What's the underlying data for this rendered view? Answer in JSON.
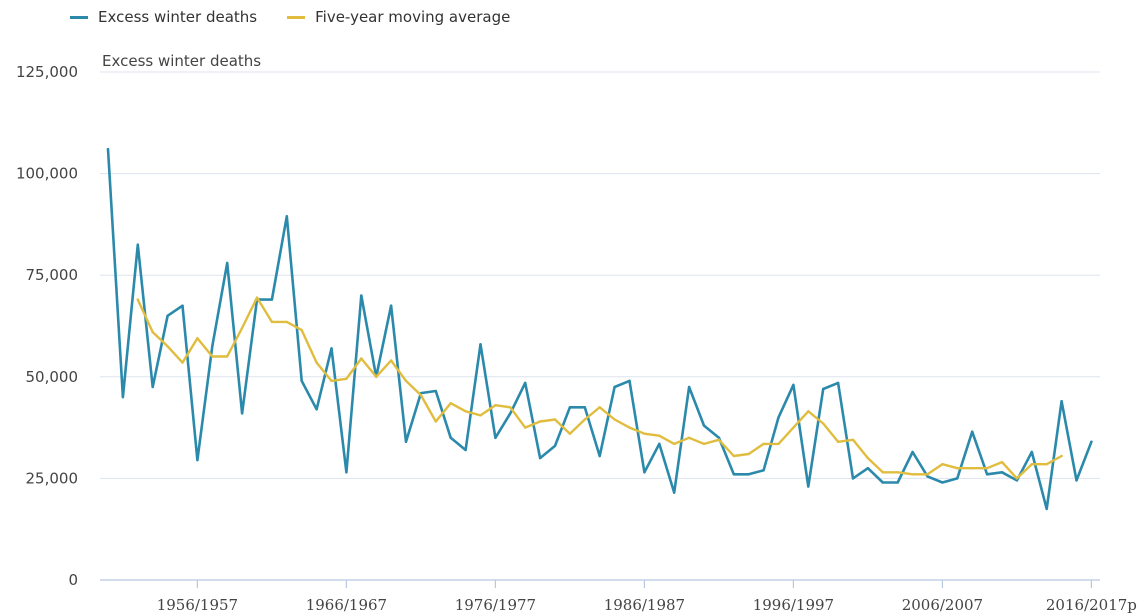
{
  "chart_data": {
    "type": "line",
    "legend": [
      {
        "name": "Excess winter deaths",
        "color": "#2b8aab"
      },
      {
        "name": "Five-year moving average",
        "color": "#e0bd3e"
      }
    ],
    "legend_position": "top-left",
    "ylabel": "Excess winter deaths",
    "ylim": [
      0,
      125000
    ],
    "yticks": [
      0,
      25000,
      50000,
      75000,
      100000,
      125000
    ],
    "ytick_labels": [
      "0",
      "25,000",
      "50,000",
      "75,000",
      "100,000",
      "125,000"
    ],
    "xtick_labels": [
      "1956/1957",
      "1966/1967",
      "1976/1977",
      "1986/1987",
      "1996/1997",
      "2006/2007",
      "2016/2017p"
    ],
    "xtick_index": [
      6,
      16,
      26,
      36,
      46,
      56,
      66
    ],
    "grid": "horizontal",
    "categories": [
      "1950/1951",
      "1951/1952",
      "1952/1953",
      "1953/1954",
      "1954/1955",
      "1955/1956",
      "1956/1957",
      "1957/1958",
      "1958/1959",
      "1959/1960",
      "1960/1961",
      "1961/1962",
      "1962/1963",
      "1963/1964",
      "1964/1965",
      "1965/1966",
      "1966/1967",
      "1967/1968",
      "1968/1969",
      "1969/1970",
      "1970/1971",
      "1971/1972",
      "1972/1973",
      "1973/1974",
      "1974/1975",
      "1975/1976",
      "1976/1977",
      "1977/1978",
      "1978/1979",
      "1979/1980",
      "1980/1981",
      "1981/1982",
      "1982/1983",
      "1983/1984",
      "1984/1985",
      "1985/1986",
      "1986/1987",
      "1987/1988",
      "1988/1989",
      "1989/1990",
      "1990/1991",
      "1991/1992",
      "1992/1993",
      "1993/1994",
      "1994/1995",
      "1995/1996",
      "1996/1997",
      "1997/1998",
      "1998/1999",
      "1999/2000",
      "2000/2001",
      "2001/2002",
      "2002/2003",
      "2003/2004",
      "2004/2005",
      "2005/2006",
      "2006/2007",
      "2007/2008",
      "2008/2009",
      "2009/2010",
      "2010/2011",
      "2011/2012",
      "2012/2013",
      "2013/2014",
      "2014/2015",
      "2015/2016",
      "2016/2017p"
    ],
    "series": [
      {
        "name": "Excess winter deaths",
        "color": "#2b8aab",
        "values": [
          106000,
          45000,
          82500,
          47500,
          65000,
          67500,
          29500,
          57500,
          78000,
          41000,
          69000,
          69000,
          89500,
          49000,
          42000,
          57000,
          26500,
          70000,
          50000,
          67500,
          34000,
          46000,
          46500,
          35000,
          32000,
          58000,
          35000,
          41000,
          48500,
          30000,
          33000,
          42500,
          42500,
          30500,
          47500,
          49000,
          26500,
          33500,
          21500,
          47500,
          38000,
          35000,
          26000,
          26000,
          27000,
          40000,
          48000,
          23000,
          47000,
          48500,
          25000,
          27500,
          24000,
          24000,
          31500,
          25500,
          24000,
          25000,
          36500,
          26000,
          26500,
          24500,
          31500,
          17500,
          44000,
          24500,
          34000
        ]
      },
      {
        "name": "Five-year moving average",
        "color": "#e0bd3e",
        "values": [
          null,
          null,
          69000,
          61000,
          57500,
          53500,
          59500,
          55000,
          55000,
          62000,
          69500,
          63500,
          63500,
          61500,
          53500,
          49000,
          49500,
          54500,
          50000,
          54000,
          49000,
          45500,
          39000,
          43500,
          41500,
          40500,
          43000,
          42500,
          37500,
          39000,
          39500,
          36000,
          39500,
          42500,
          39500,
          37500,
          36000,
          35500,
          33500,
          35000,
          33500,
          34500,
          30500,
          31000,
          33500,
          33500,
          37500,
          41500,
          38500,
          34000,
          34500,
          30000,
          26500,
          26500,
          26000,
          26000,
          28500,
          27500,
          27500,
          27500,
          29000,
          25000,
          28500,
          28500,
          30500,
          null,
          null
        ]
      }
    ]
  }
}
